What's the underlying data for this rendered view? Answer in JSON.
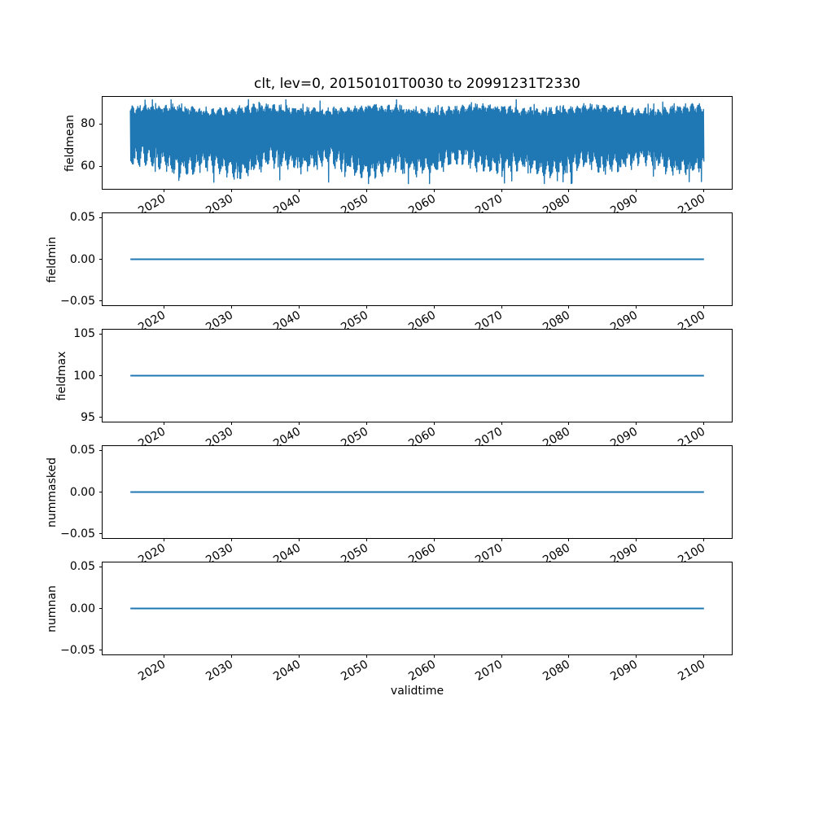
{
  "figure": {
    "title": "clt, lev=0, 20150101T0030 to 20991231T2330",
    "background_color": "#ffffff",
    "text_color": "#000000",
    "line_color": "#1f77b4"
  },
  "xaxis": {
    "label": "validtime",
    "ticks": [
      2020,
      2030,
      2040,
      2050,
      2060,
      2070,
      2080,
      2090,
      2100
    ],
    "tick_labels": [
      "2020",
      "2030",
      "2040",
      "2050",
      "2060",
      "2070",
      "2080",
      "2090",
      "2100"
    ],
    "xlim": [
      2010.75,
      2104.25
    ],
    "data_start": 2015.0,
    "data_end": 2100.0
  },
  "chart_data": [
    {
      "type": "line",
      "title": "clt, lev=0, 20150101T0030 to 20991231T2330",
      "ylabel": "fieldmean",
      "yticks": [
        80,
        60
      ],
      "ytick_labels": [
        "80",
        "60"
      ],
      "ylim": [
        49.4,
        92.8
      ],
      "legend": "none",
      "grid": false,
      "series": [
        {
          "name": "fieldmean",
          "kind": "dense_seasonal_noisy",
          "description": "half-hourly cloud fraction mean oscillating with an annual cycle from 2015 to 2100",
          "approx_mean": 72,
          "typical_upper_envelope": 87,
          "typical_lower_envelope": 61,
          "min": 52,
          "max": 91,
          "annual_cycles": 85
        }
      ]
    },
    {
      "type": "line",
      "ylabel": "fieldmin",
      "yticks": [
        0.05,
        0.0,
        -0.05
      ],
      "ytick_labels": [
        "0.05",
        "0.00",
        "−0.05"
      ],
      "ylim": [
        -0.055,
        0.055
      ],
      "legend": "none",
      "grid": false,
      "series": [
        {
          "name": "fieldmin",
          "kind": "constant",
          "value": 0.0
        }
      ]
    },
    {
      "type": "line",
      "ylabel": "fieldmax",
      "yticks": [
        105,
        100,
        95
      ],
      "ytick_labels": [
        "105",
        "100",
        "95"
      ],
      "ylim": [
        94.5,
        105.5
      ],
      "legend": "none",
      "grid": false,
      "series": [
        {
          "name": "fieldmax",
          "kind": "constant",
          "value": 100.0
        }
      ]
    },
    {
      "type": "line",
      "ylabel": "nummasked",
      "yticks": [
        0.05,
        0.0,
        -0.05
      ],
      "ytick_labels": [
        "0.05",
        "0.00",
        "−0.05"
      ],
      "ylim": [
        -0.055,
        0.055
      ],
      "legend": "none",
      "grid": false,
      "series": [
        {
          "name": "nummasked",
          "kind": "constant",
          "value": 0.0
        }
      ]
    },
    {
      "type": "line",
      "ylabel": "numnan",
      "yticks": [
        0.05,
        0.0,
        -0.05
      ],
      "ytick_labels": [
        "0.05",
        "0.00",
        "−0.05"
      ],
      "ylim": [
        -0.055,
        0.055
      ],
      "legend": "none",
      "grid": false,
      "series": [
        {
          "name": "numnan",
          "kind": "constant",
          "value": 0.0
        }
      ]
    }
  ]
}
